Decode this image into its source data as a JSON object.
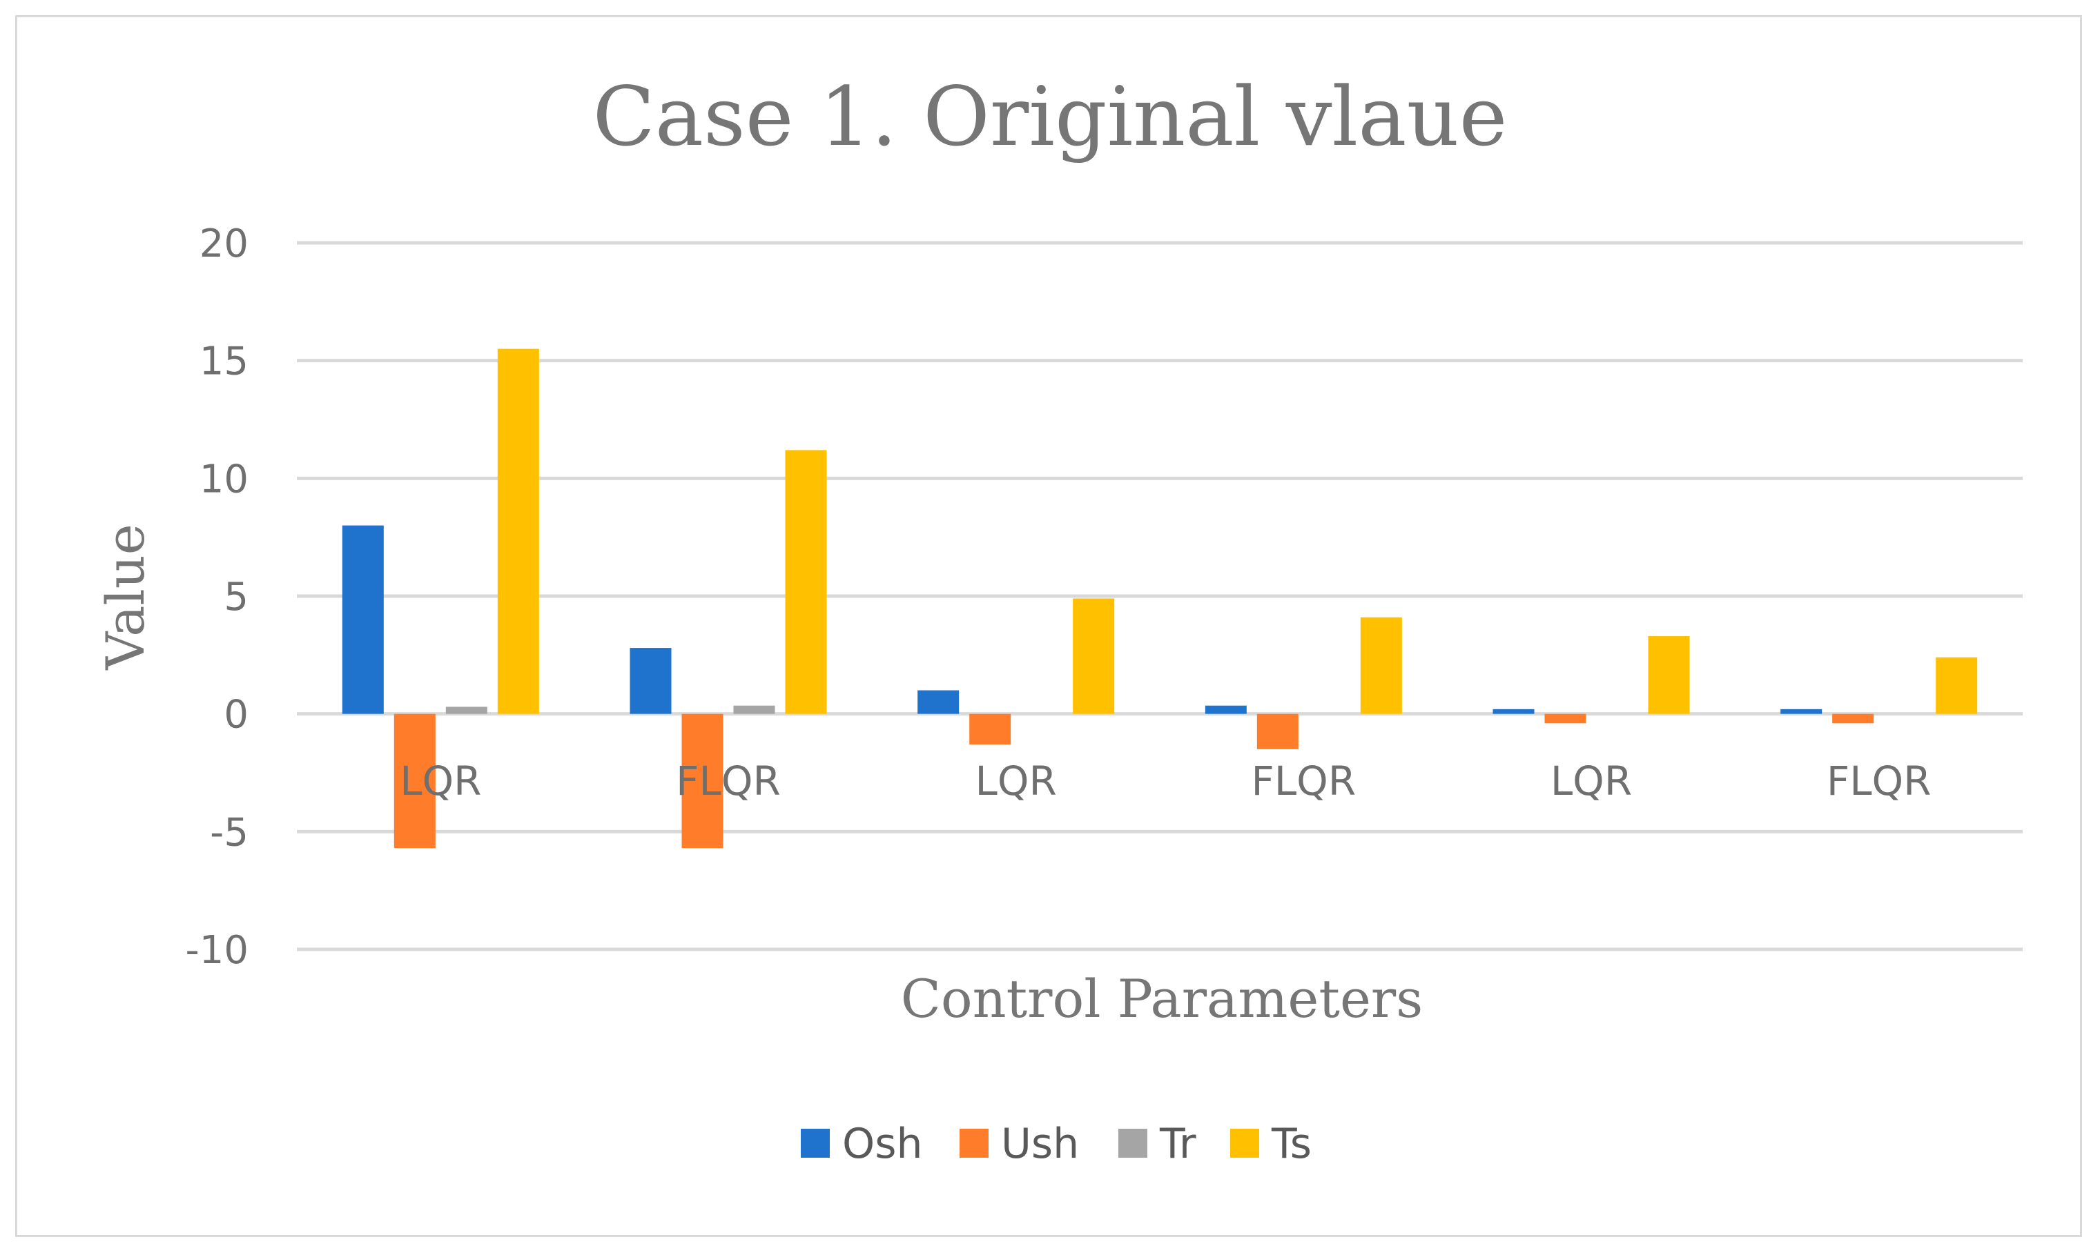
{
  "chart_data": {
    "type": "bar",
    "title": "Case 1. Original vlaue",
    "xlabel": "Control Parameters",
    "ylabel": "Value",
    "ylim": [
      -10,
      20
    ],
    "yticks": [
      20,
      15,
      10,
      5,
      0,
      -5,
      -10
    ],
    "ytick_labels": [
      "20",
      "15",
      "10",
      "5",
      "0",
      "-5",
      "-10"
    ],
    "grid": true,
    "legend_position": "bottom",
    "categories": [
      "LQR",
      "FLQR",
      "LQR",
      "FLQR",
      "LQR",
      "FLQR"
    ],
    "series": [
      {
        "name": "Osh",
        "color": "#1f73cc",
        "values": [
          8.0,
          2.8,
          1.0,
          0.35,
          0.2,
          0.2
        ]
      },
      {
        "name": "Ush",
        "color": "#ff7c2a",
        "values": [
          -5.7,
          -5.7,
          -1.3,
          -1.5,
          -0.4,
          -0.4
        ]
      },
      {
        "name": "Tr",
        "color": "#a5a5a5",
        "values": [
          0.3,
          0.35,
          0,
          0,
          0,
          0
        ]
      },
      {
        "name": "Ts",
        "color": "#ffc000",
        "values": [
          15.5,
          11.2,
          4.9,
          4.1,
          3.3,
          2.4
        ]
      }
    ]
  }
}
